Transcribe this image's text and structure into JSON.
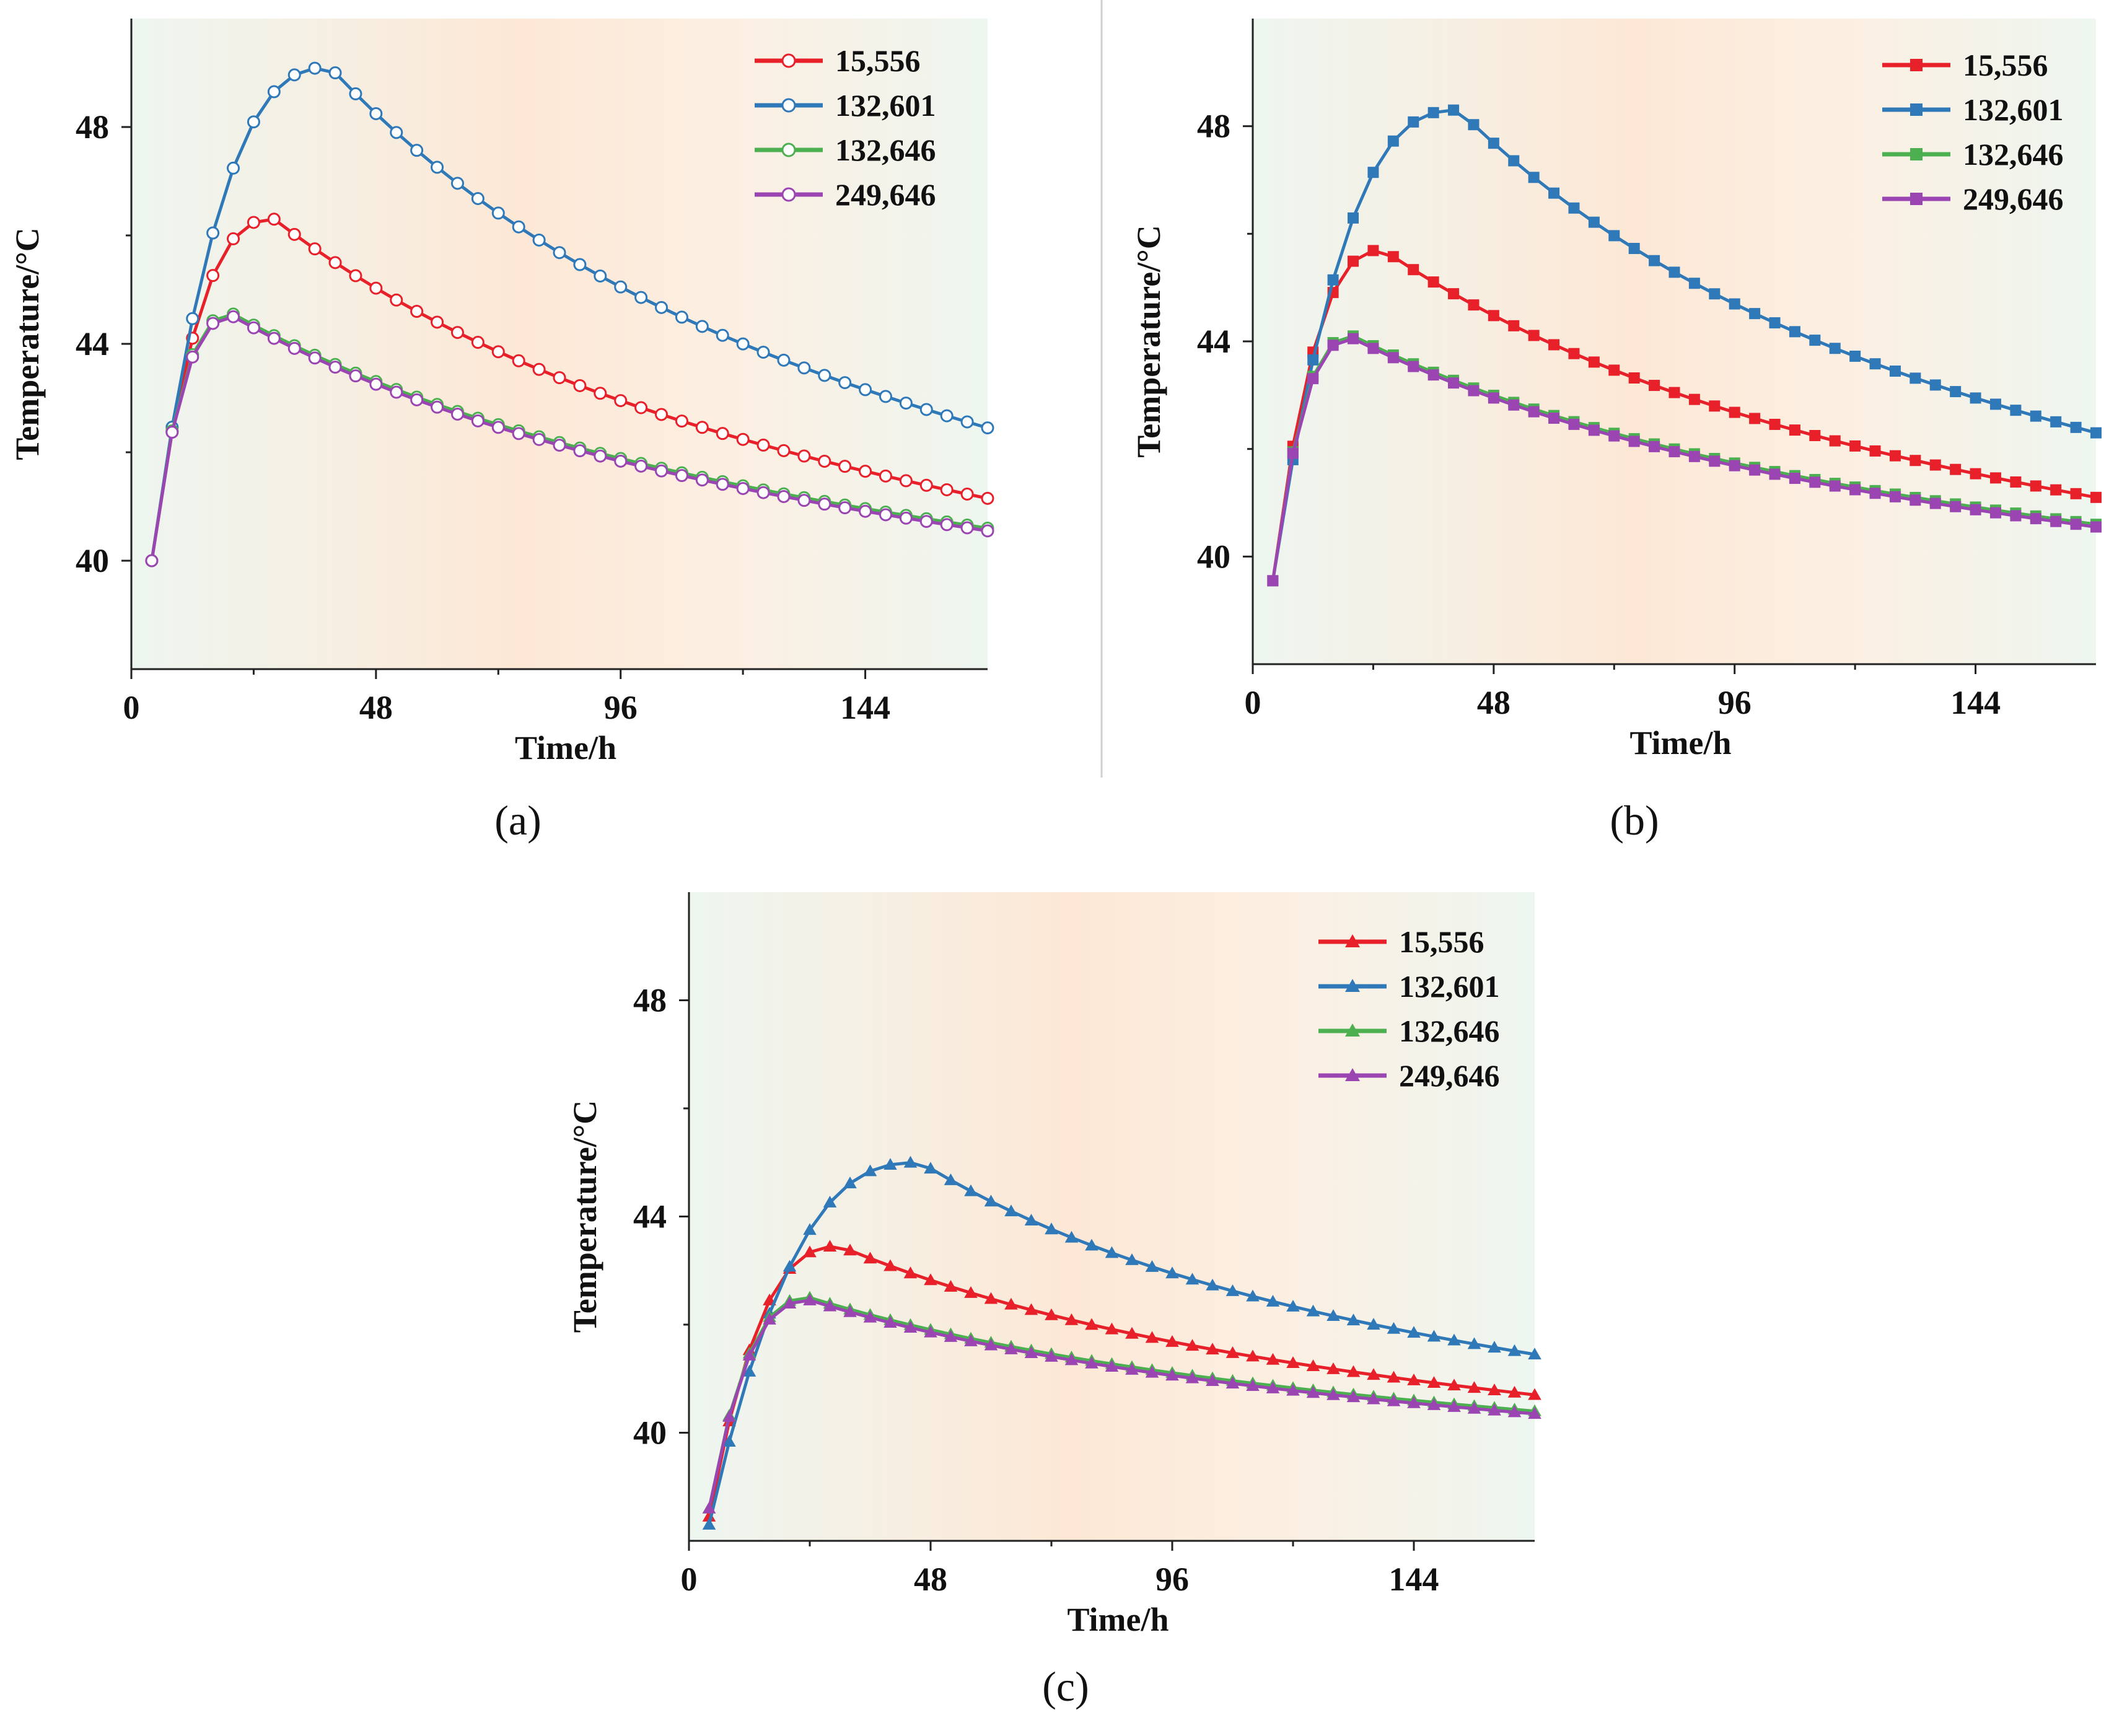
{
  "chart_data": [
    {
      "type": "line",
      "caption": "(a)",
      "marker": "circle",
      "xlabel": "Time/h",
      "ylabel": "Temperature/°C",
      "xlim": [
        0,
        168
      ],
      "ylim": [
        38,
        50
      ],
      "xticks": [
        0,
        48,
        96,
        144
      ],
      "yticks": [
        40,
        44,
        48
      ],
      "legend_position": "top-right",
      "series": [
        {
          "name": "15,556",
          "color": "#e8202a",
          "start": 40.0,
          "peak": 46.3,
          "t_peak": 28,
          "end": 41.15
        },
        {
          "name": "132,601",
          "color": "#2f79b9",
          "start": 40.0,
          "peak": 49.1,
          "t_peak": 39,
          "end": 42.45
        },
        {
          "name": "132,646",
          "color": "#4caf50",
          "start": 40.0,
          "peak": 44.55,
          "t_peak": 20,
          "end": 40.6
        },
        {
          "name": "249,646",
          "color": "#9b45b2",
          "start": 40.0,
          "peak": 44.5,
          "t_peak": 20,
          "end": 40.55
        }
      ]
    },
    {
      "type": "line",
      "caption": "(b)",
      "marker": "square",
      "xlabel": "Time/h",
      "ylabel": "Temperature/°C",
      "xlim": [
        0,
        168
      ],
      "ylim": [
        38,
        50
      ],
      "xticks": [
        0,
        48,
        96,
        144
      ],
      "yticks": [
        40,
        44,
        48
      ],
      "legend_position": "top-right",
      "series": [
        {
          "name": "15,556",
          "color": "#e8202a",
          "start": 39.55,
          "peak": 45.7,
          "t_peak": 26,
          "end": 41.1
        },
        {
          "name": "132,601",
          "color": "#2f79b9",
          "start": 39.55,
          "peak": 48.3,
          "t_peak": 41,
          "end": 42.3
        },
        {
          "name": "132,646",
          "color": "#4caf50",
          "start": 39.55,
          "peak": 44.1,
          "t_peak": 20,
          "end": 40.6
        },
        {
          "name": "249,646",
          "color": "#9b45b2",
          "start": 39.55,
          "peak": 44.05,
          "t_peak": 20,
          "end": 40.55
        }
      ]
    },
    {
      "type": "line",
      "caption": "(c)",
      "marker": "triangle",
      "xlabel": "Time/h",
      "ylabel": "Temperature/°C",
      "xlim": [
        0,
        168
      ],
      "ylim": [
        38,
        50
      ],
      "xticks": [
        0,
        48,
        96,
        144
      ],
      "yticks": [
        40,
        44,
        48
      ],
      "legend_position": "top-right",
      "series": [
        {
          "name": "15,556",
          "color": "#e8202a",
          "start": 38.45,
          "peak": 43.45,
          "t_peak": 30,
          "end": 40.7
        },
        {
          "name": "132,601",
          "color": "#2f79b9",
          "start": 38.3,
          "peak": 45.0,
          "t_peak": 46,
          "end": 41.45
        },
        {
          "name": "132,646",
          "color": "#4caf50",
          "start": 38.6,
          "peak": 42.5,
          "t_peak": 24,
          "end": 40.4
        },
        {
          "name": "249,646",
          "color": "#9b45b2",
          "start": 38.6,
          "peak": 42.45,
          "t_peak": 24,
          "end": 40.35
        }
      ]
    }
  ]
}
